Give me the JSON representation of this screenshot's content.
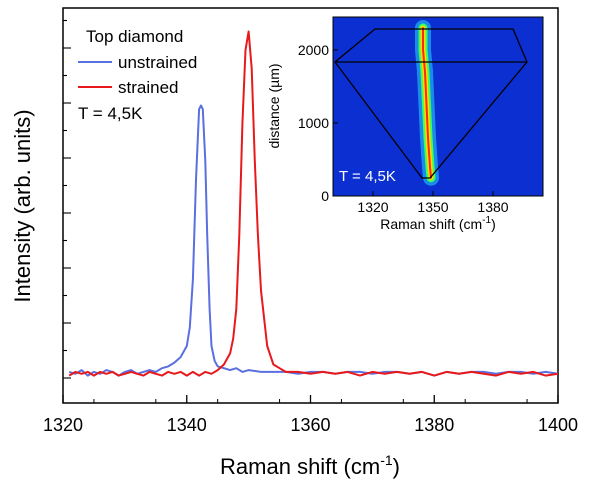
{
  "chart_data": [
    {
      "type": "line",
      "xlabel": "Raman shift (cm",
      "xlabel_sup": "-1",
      "xlabel_close": ")",
      "ylabel": "Intensity (arb. units)",
      "xlim": [
        1320,
        1400
      ],
      "ylim": [
        0,
        1.0
      ],
      "xticks": [
        1320,
        1340,
        1360,
        1380,
        1400
      ],
      "y_tick_labels": "none",
      "grid": false,
      "legend": {
        "title": "Top diamond",
        "placement": "top-left",
        "entries": [
          "unstrained",
          "strained"
        ]
      },
      "annotation": "T = 4,5K",
      "series": [
        {
          "name": "unstrained",
          "color": "#5a6fe0",
          "x": [
            1321,
            1322,
            1323,
            1324,
            1325,
            1326,
            1327,
            1328,
            1329,
            1330,
            1331,
            1332,
            1333,
            1334,
            1335,
            1336,
            1337,
            1338,
            1339,
            1340,
            1340.5,
            1341,
            1341.5,
            1342,
            1342.3,
            1342.6,
            1343,
            1343.3,
            1343.7,
            1344,
            1344.5,
            1345,
            1346,
            1347,
            1348,
            1349,
            1350,
            1352,
            1354,
            1356,
            1358,
            1360,
            1362,
            1364,
            1366,
            1368,
            1370,
            1372,
            1374,
            1376,
            1378,
            1380,
            1382,
            1384,
            1386,
            1388,
            1390,
            1392,
            1394,
            1396,
            1398,
            1400
          ],
          "y": [
            0.03,
            0.025,
            0.035,
            0.02,
            0.03,
            0.025,
            0.035,
            0.03,
            0.02,
            0.03,
            0.035,
            0.025,
            0.03,
            0.035,
            0.03,
            0.04,
            0.045,
            0.055,
            0.07,
            0.1,
            0.15,
            0.28,
            0.55,
            0.74,
            0.75,
            0.74,
            0.6,
            0.4,
            0.2,
            0.1,
            0.06,
            0.045,
            0.04,
            0.035,
            0.04,
            0.03,
            0.035,
            0.03,
            0.03,
            0.03,
            0.025,
            0.03,
            0.03,
            0.025,
            0.03,
            0.03,
            0.025,
            0.03,
            0.03,
            0.025,
            0.03,
            0.02,
            0.03,
            0.025,
            0.03,
            0.03,
            0.025,
            0.03,
            0.03,
            0.025,
            0.03,
            0.025
          ]
        },
        {
          "name": "strained",
          "color": "#e8191b",
          "x": [
            1321,
            1322,
            1323,
            1324,
            1325,
            1326,
            1327,
            1328,
            1329,
            1330,
            1331,
            1332,
            1333,
            1334,
            1335,
            1336,
            1337,
            1338,
            1339,
            1340,
            1341,
            1342,
            1343,
            1344,
            1345,
            1346,
            1347,
            1347.5,
            1348,
            1348.5,
            1349,
            1349.5,
            1350,
            1350.5,
            1351,
            1351.5,
            1352,
            1353,
            1354,
            1355,
            1356,
            1358,
            1360,
            1362,
            1364,
            1366,
            1368,
            1370,
            1372,
            1374,
            1376,
            1378,
            1380,
            1382,
            1384,
            1386,
            1388,
            1390,
            1392,
            1394,
            1396,
            1398,
            1400
          ],
          "y": [
            0.02,
            0.03,
            0.025,
            0.03,
            0.02,
            0.03,
            0.025,
            0.03,
            0.02,
            0.025,
            0.03,
            0.025,
            0.02,
            0.03,
            0.025,
            0.02,
            0.03,
            0.025,
            0.03,
            0.02,
            0.03,
            0.02,
            0.03,
            0.025,
            0.035,
            0.05,
            0.08,
            0.12,
            0.2,
            0.4,
            0.7,
            0.9,
            0.95,
            0.85,
            0.6,
            0.4,
            0.25,
            0.1,
            0.05,
            0.04,
            0.03,
            0.03,
            0.025,
            0.03,
            0.025,
            0.03,
            0.02,
            0.03,
            0.025,
            0.03,
            0.025,
            0.03,
            0.02,
            0.03,
            0.025,
            0.03,
            0.025,
            0.02,
            0.03,
            0.025,
            0.03,
            0.02,
            0.025
          ]
        }
      ]
    },
    {
      "type": "heatmap",
      "inset": true,
      "placement": "top-right",
      "xlabel": "Raman shift (cm",
      "xlabel_sup": "-1",
      "xlabel_close": ")",
      "ylabel": "distance (µm)",
      "xlim": [
        1300,
        1405
      ],
      "ylim": [
        0,
        2450
      ],
      "xticks": [
        1320,
        1350,
        1380
      ],
      "yticks": [
        0,
        1000,
        2000
      ],
      "annotation": "T = 4,5K",
      "background_color": "#0b2fd0",
      "peak_trace": {
        "x": [
          1345,
          1345,
          1346,
          1346.5,
          1347,
          1347.5,
          1348,
          1348.5,
          1349
        ],
        "y": [
          2300,
          2000,
          1700,
          1400,
          1100,
          800,
          600,
          400,
          250
        ]
      }
    }
  ]
}
